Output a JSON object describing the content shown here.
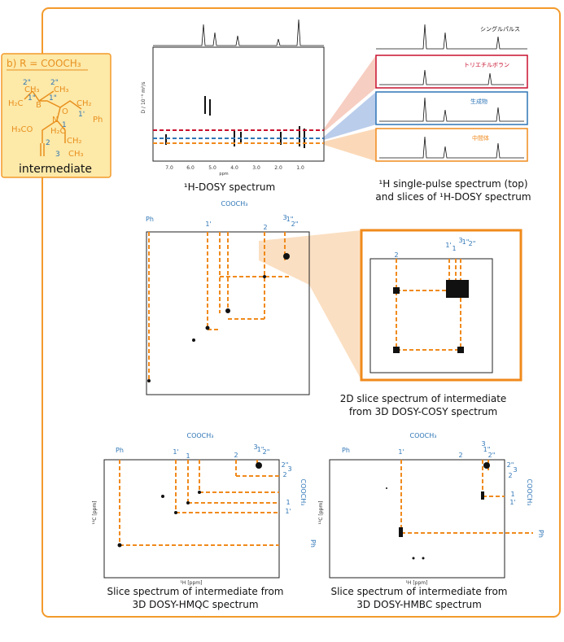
{
  "structure_box": {
    "title": "b) R = COOCH₃",
    "atoms": [
      "2\"",
      "2\"",
      "CH₃",
      "CH₃",
      "1\"",
      "1\"",
      "H₂C",
      "B",
      "O",
      "N",
      "CH₂",
      "1'",
      "Ph",
      "H₃CO",
      "H₂C",
      "1",
      "CH₂",
      "2",
      "CH₃",
      "3"
    ],
    "caption": "intermediate"
  },
  "dosy": {
    "caption": "¹H-DOSY spectrum",
    "xticks": [
      "7.0",
      "6.0",
      "5.0",
      "4.0",
      "3.0",
      "2.0",
      "1.0"
    ],
    "x_unit": "ppm",
    "y_label": "D / 10⁻⁹ m²/s"
  },
  "slices": {
    "labels": [
      "シングルパルス",
      "トリエチルボラン",
      "生成物",
      "中間体"
    ],
    "caption": [
      "¹H single-pulse spectrum (top)",
      "and slices of ¹H-DOSY spectrum"
    ]
  },
  "cosy": {
    "top_labels": [
      "Ph",
      "1'",
      "COOCH₃",
      "2",
      "3",
      "1\"",
      "2\""
    ],
    "inset_labels": [
      "2",
      "1'",
      "1",
      "3",
      "1\"",
      "2\""
    ],
    "caption": [
      "2D slice spectrum of intermediate",
      "from 3D DOSY-COSY spectrum"
    ]
  },
  "hmqc": {
    "top_labels": [
      "Ph",
      "1'",
      "1",
      "COOCH₃",
      "2",
      "3",
      "1\"",
      "2\""
    ],
    "right_labels": [
      "2\"",
      "3",
      "2",
      "COOCH₃",
      "1",
      "1'",
      "Ph"
    ],
    "x_label": "¹H [ppm]",
    "y_label": "¹³C [ppm]",
    "caption": [
      "Slice spectrum of intermediate from",
      "3D DOSY-HMQC spectrum"
    ]
  },
  "hmbc": {
    "top_labels": [
      "Ph",
      "1'",
      "COOCH₃",
      "2",
      "3",
      "1\"",
      "2\""
    ],
    "right_labels": [
      "2\"",
      "3",
      "2",
      "COOCH₃",
      "1",
      "1'",
      "Ph"
    ],
    "x_label": "¹H [ppm]",
    "y_label": "¹³C [ppm]",
    "caption": [
      "Slice spectrum of intermediate from",
      "3D DOSY-HMBC spectrum"
    ]
  }
}
